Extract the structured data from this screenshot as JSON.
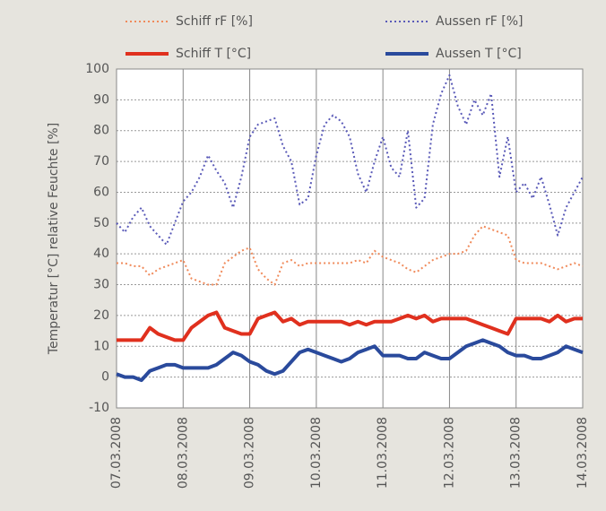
{
  "chart_data": {
    "type": "line",
    "ylabel": "Temperatur [°C] relative Feuchte [%]",
    "categories": [
      "07.03.2008",
      null,
      null,
      null,
      null,
      null,
      null,
      null,
      "08.03.2008",
      null,
      null,
      null,
      null,
      null,
      null,
      null,
      "09.03.2008",
      null,
      null,
      null,
      null,
      null,
      null,
      null,
      "10.03.2008",
      null,
      null,
      null,
      null,
      null,
      null,
      null,
      "11.03.2008",
      null,
      null,
      null,
      null,
      null,
      null,
      null,
      "12.03.2008",
      null,
      null,
      null,
      null,
      null,
      null,
      null,
      "13.03.2008",
      null,
      null,
      null,
      null,
      null,
      null,
      null,
      "14.03.2008"
    ],
    "series": [
      {
        "name": "Schiff rF [%]",
        "color": "#f08a5a",
        "line_style": "dotted",
        "values": [
          37,
          37,
          36,
          36,
          33,
          35,
          36,
          37,
          38,
          32,
          31,
          30,
          30,
          37,
          39,
          41,
          42,
          35,
          32,
          30,
          37,
          38,
          36,
          37,
          37,
          37,
          37,
          37,
          37,
          38,
          37,
          41,
          39,
          38,
          37,
          35,
          34,
          36,
          38,
          39,
          40,
          40,
          41,
          46,
          49,
          48,
          47,
          46,
          38,
          37,
          37,
          37,
          36,
          35,
          36,
          37,
          36
        ]
      },
      {
        "name": "Aussen rF [%]",
        "color": "#5a5ab8",
        "line_style": "dotted",
        "values": [
          50,
          47,
          52,
          55,
          49,
          46,
          43,
          50,
          57,
          60,
          65,
          72,
          67,
          63,
          55,
          65,
          78,
          82,
          83,
          84,
          75,
          70,
          56,
          58,
          72,
          82,
          85,
          83,
          78,
          66,
          60,
          70,
          78,
          68,
          65,
          80,
          55,
          58,
          82,
          92,
          98,
          88,
          82,
          90,
          85,
          92,
          65,
          78,
          60,
          63,
          58,
          65,
          56,
          46,
          55,
          60,
          65
        ]
      },
      {
        "name": "Schiff T [°C]",
        "color": "#e0301e",
        "line_style": "solid",
        "values": [
          12,
          12,
          12,
          12,
          16,
          14,
          13,
          12,
          12,
          16,
          18,
          20,
          21,
          16,
          15,
          14,
          14,
          19,
          20,
          21,
          18,
          19,
          17,
          18,
          18,
          18,
          18,
          18,
          17,
          18,
          17,
          18,
          18,
          18,
          19,
          20,
          19,
          20,
          18,
          19,
          19,
          19,
          19,
          18,
          17,
          16,
          15,
          14,
          19,
          19,
          19,
          19,
          18,
          20,
          18,
          19,
          19
        ]
      },
      {
        "name": "Aussen T [°C]",
        "color": "#2a4a9c",
        "line_style": "solid",
        "values": [
          1,
          0,
          0,
          -1,
          2,
          3,
          4,
          4,
          3,
          3,
          3,
          3,
          4,
          6,
          8,
          7,
          5,
          4,
          2,
          1,
          2,
          5,
          8,
          9,
          8,
          7,
          6,
          5,
          6,
          8,
          9,
          10,
          7,
          7,
          7,
          6,
          6,
          8,
          7,
          6,
          6,
          8,
          10,
          11,
          12,
          11,
          10,
          8,
          7,
          7,
          6,
          6,
          7,
          8,
          10,
          9,
          8
        ]
      }
    ],
    "ylim": [
      -10,
      100
    ],
    "yticks": [
      -10,
      0,
      10,
      20,
      30,
      40,
      50,
      60,
      70,
      80,
      90,
      100
    ],
    "grid": true,
    "legend": "top"
  }
}
